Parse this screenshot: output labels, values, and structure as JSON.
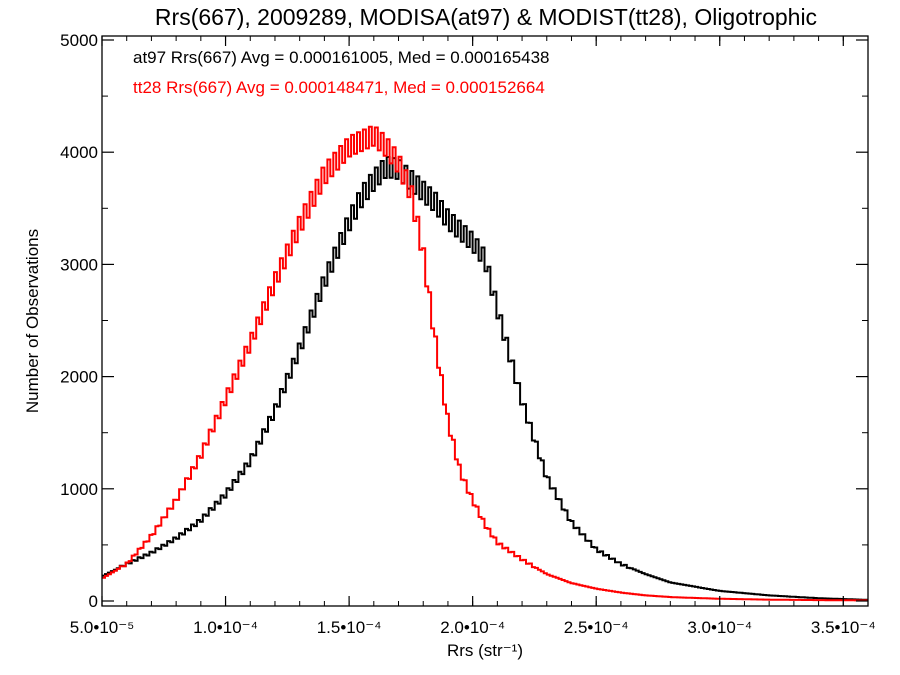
{
  "chart_data": {
    "type": "line",
    "title": "Rrs(667), 2009289, MODISA(at97) & MODIST(tt28), Oligotrophic",
    "xlabel": "Rrs (str⁻¹)",
    "ylabel": "Number of Observations",
    "xlim": [
      5e-05,
      0.00036
    ],
    "ylim": [
      0,
      5000
    ],
    "x_ticks": [
      5e-05,
      0.0001,
      0.00015,
      0.0002,
      0.00025,
      0.0003,
      0.00035
    ],
    "x_tick_labels": [
      "5.0•10⁻⁵",
      "1.0•10⁻⁴",
      "1.5•10⁻⁴",
      "2.0•10⁻⁴",
      "2.5•10⁻⁴",
      "3.0•10⁻⁴",
      "3.5•10⁻⁴"
    ],
    "y_ticks": [
      0,
      1000,
      2000,
      3000,
      4000,
      5000
    ],
    "y_tick_labels": [
      "0",
      "1000",
      "2000",
      "3000",
      "4000",
      "5000"
    ],
    "grid": false,
    "legend_position": "top-left",
    "annotations": [
      {
        "text": "at97 Rrs(667) Avg = 0.000161005, Med = 0.000165438",
        "color": "#000000"
      },
      {
        "text": "tt28 Rrs(667) Avg = 0.000148471, Med = 0.000152664",
        "color": "#ff0000"
      }
    ],
    "series": [
      {
        "color": "#000000",
        "x": [
          5e-05,
          6e-05,
          7e-05,
          8e-05,
          9e-05,
          0.0001,
          0.00011,
          0.00012,
          0.00013,
          0.00014,
          0.00015,
          0.000155,
          0.00016,
          0.000165,
          0.00017,
          0.000175,
          0.00018,
          0.000185,
          0.00019,
          0.000195,
          0.0002,
          0.000205,
          0.00021,
          0.00022,
          0.00023,
          0.00024,
          0.00025,
          0.00026,
          0.00027,
          0.00028,
          0.0003,
          0.00032,
          0.00034,
          0.00036
        ],
        "y": [
          220,
          330,
          430,
          560,
          720,
          950,
          1250,
          1700,
          2250,
          2850,
          3380,
          3600,
          3750,
          3870,
          3850,
          3750,
          3650,
          3550,
          3400,
          3300,
          3200,
          3050,
          2600,
          1780,
          1100,
          700,
          460,
          330,
          240,
          165,
          90,
          50,
          25,
          10
        ]
      },
      {
        "color": "#ff0000",
        "x": [
          5e-05,
          6e-05,
          7e-05,
          8e-05,
          9e-05,
          0.0001,
          0.00011,
          0.00012,
          0.00013,
          0.00014,
          0.00015,
          0.000155,
          0.00016,
          0.000165,
          0.00017,
          0.000175,
          0.00018,
          0.000185,
          0.00019,
          0.000195,
          0.0002,
          0.000205,
          0.00021,
          0.00022,
          0.00023,
          0.00024,
          0.00025,
          0.00026,
          0.00027,
          0.00028,
          0.0003,
          0.00032,
          0.00034,
          0.00036
        ],
        "y": [
          200,
          330,
          580,
          900,
          1300,
          1800,
          2300,
          2850,
          3350,
          3800,
          4050,
          4100,
          4150,
          4050,
          3900,
          3650,
          3100,
          2300,
          1600,
          1150,
          900,
          680,
          520,
          370,
          240,
          160,
          110,
          75,
          50,
          35,
          20,
          12,
          8,
          5
        ]
      }
    ]
  }
}
